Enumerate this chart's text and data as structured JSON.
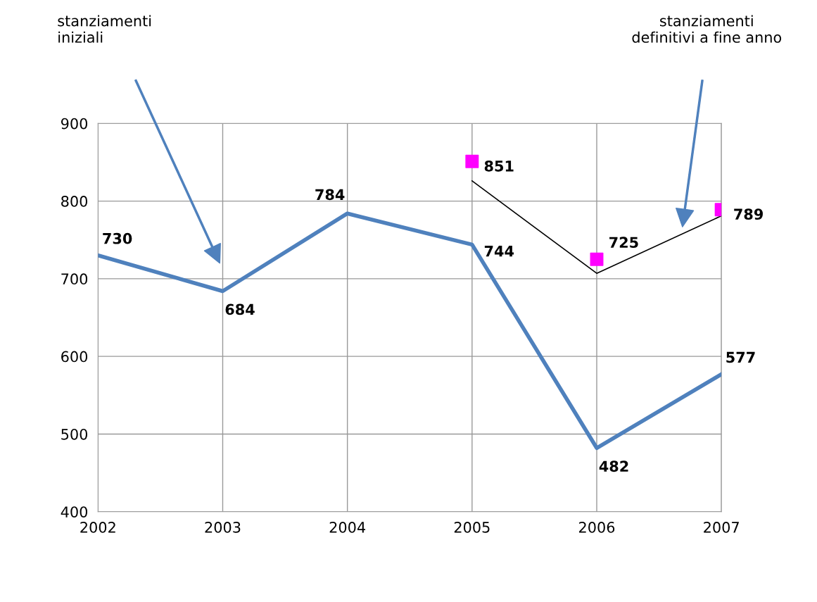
{
  "chart_data": {
    "type": "line",
    "x": [
      2002,
      2003,
      2004,
      2005,
      2006,
      2007
    ],
    "series": [
      {
        "color": "#4f81bd",
        "values": [
          730,
          684,
          784,
          744,
          482,
          577
        ],
        "value_labels": [
          "730",
          "684",
          "784",
          "744",
          "482",
          "577"
        ],
        "marker": "none"
      },
      {
        "type": "scatter",
        "color": "#ff00ff",
        "x": [
          2005,
          2006,
          2007
        ],
        "values": [
          851,
          725,
          789
        ],
        "value_labels": [
          "851",
          "725",
          "789"
        ],
        "marker": "square"
      },
      {
        "color": "#000000",
        "x": [
          2005,
          2006,
          2007
        ],
        "values": [
          826,
          707,
          781
        ],
        "marker": "none"
      }
    ],
    "xlim": [
      2002,
      2007
    ],
    "xticks": [
      2002,
      2003,
      2004,
      2005,
      2006,
      2007
    ],
    "ylim": [
      400,
      900
    ],
    "yticks": [
      400,
      500,
      600,
      700,
      800,
      900
    ],
    "grid": true,
    "annotations": [
      "stanziamenti\niniziali",
      "stanziamenti\ndefinitivi a fine anno"
    ]
  }
}
